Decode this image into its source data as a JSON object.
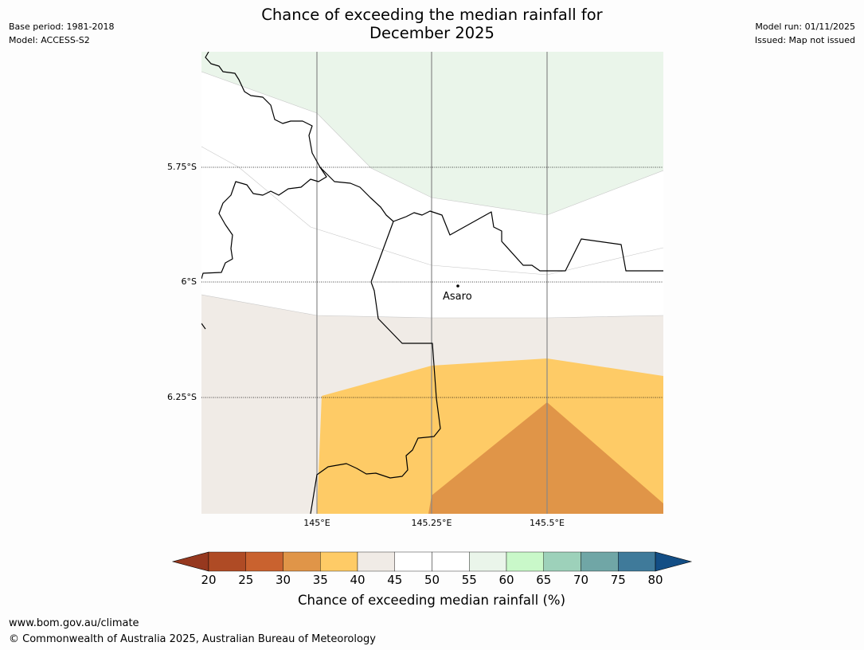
{
  "title_line1": "Chance of exceeding the median rainfall for",
  "title_line2": "December 2025",
  "meta_left": [
    "Base period: 1981-2018",
    "Model: ACCESS-S2"
  ],
  "meta_right": [
    "Model run: 01/11/2025",
    "Issued: Map not issued"
  ],
  "map": {
    "lat_labels": [
      "5.75°S",
      "6°S",
      "6.25°S"
    ],
    "lon_labels": [
      "145°E",
      "145.25°E",
      "145.5°E"
    ],
    "place": "Asaro",
    "colors": {
      "green_light": "#eaf5ea",
      "beige": "#f0ebe6",
      "yellow": "#fecb66",
      "orange": "#e09548",
      "white": "#ffffff",
      "grid": "#888888",
      "border": "#000000"
    }
  },
  "colorbar": {
    "ticks": [
      "20",
      "25",
      "30",
      "35",
      "40",
      "45",
      "50",
      "55",
      "60",
      "65",
      "70",
      "75",
      "80"
    ],
    "colors": [
      "#af4b25",
      "#c9622f",
      "#e09548",
      "#fecb66",
      "#f0ebe6",
      "#ffffff",
      "#ffffff",
      "#eaf5ea",
      "#c9f8c9",
      "#9dd1ba",
      "#70a6a6",
      "#3f7a9a"
    ],
    "under_color": "#96381f",
    "over_color": "#134e85",
    "label": "Chance of exceeding median rainfall (%)"
  },
  "footer_url": "www.bom.gov.au/climate",
  "footer_copyright": "© Commonwealth of Australia 2025, Australian Bureau of Meteorology"
}
